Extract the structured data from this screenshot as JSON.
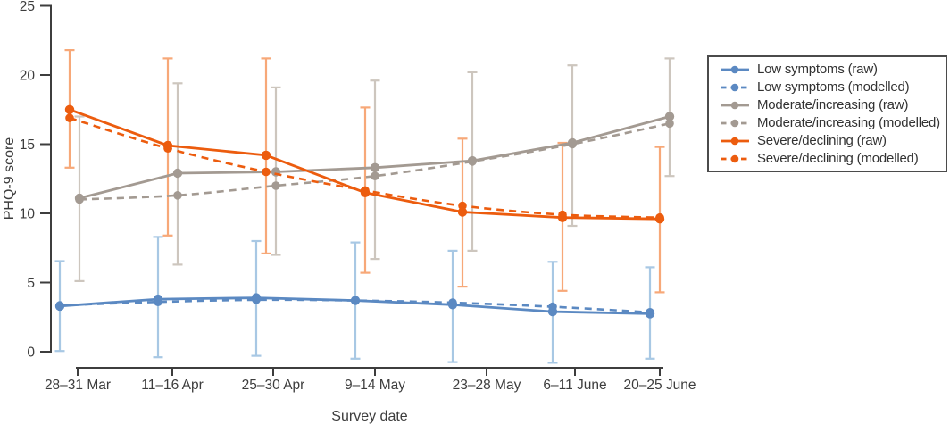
{
  "chart_data": {
    "type": "line",
    "title": "",
    "xlabel": "Survey date",
    "ylabel": "PHQ-9 score",
    "ylim": [
      0,
      25
    ],
    "yticks": [
      0,
      5,
      10,
      15,
      20,
      25
    ],
    "grid": false,
    "legend_position": "right",
    "axis_color": "#3d3d3d",
    "legend_border_color": "#4b4b4b",
    "categories": [
      "28–31 Mar",
      "11–16 Apr",
      "25–30 Apr",
      "9–14 May",
      "23–28 May",
      "6–11 June",
      "20–25 June"
    ],
    "series": [
      {
        "id": "low-raw",
        "label": "Low symptoms (raw)",
        "group": "low",
        "style": "solid",
        "color": "#5b89c2",
        "values": [
          3.3,
          3.8,
          3.9,
          3.7,
          3.4,
          2.9,
          2.75
        ]
      },
      {
        "id": "low-modelled",
        "label": "Low symptoms (modelled)",
        "group": "low",
        "style": "dashed",
        "color": "#5b89c2",
        "values": [
          3.35,
          3.6,
          3.75,
          3.7,
          3.55,
          3.25,
          2.85
        ]
      },
      {
        "id": "moderate-raw",
        "label": "Moderate/increasing (raw)",
        "group": "moderate",
        "style": "solid",
        "color": "#a39a92",
        "values": [
          11.1,
          12.9,
          13.0,
          13.3,
          13.8,
          15.1,
          17.0
        ]
      },
      {
        "id": "moderate-modelled",
        "label": "Moderate/increasing (modelled)",
        "group": "moderate",
        "style": "dashed",
        "color": "#a39a92",
        "values": [
          11.0,
          11.3,
          12.0,
          12.7,
          13.75,
          15.0,
          16.5
        ]
      },
      {
        "id": "severe-raw",
        "label": "Severe/declining (raw)",
        "group": "severe",
        "style": "solid",
        "color": "#ec5c0e",
        "values": [
          17.5,
          14.9,
          14.2,
          11.5,
          10.1,
          9.7,
          9.6
        ]
      },
      {
        "id": "severe-modelled",
        "label": "Severe/declining (modelled)",
        "group": "severe",
        "style": "dashed",
        "color": "#ec5c0e",
        "values": [
          16.9,
          14.7,
          13.0,
          11.65,
          10.55,
          9.9,
          9.7
        ]
      }
    ],
    "error_bars": [
      {
        "group": "moderate",
        "color": "#cdc6be",
        "low": [
          5.1,
          6.3,
          7.0,
          6.7,
          7.3,
          9.1,
          12.7
        ],
        "high": [
          17.0,
          19.4,
          19.1,
          19.6,
          20.2,
          20.7,
          21.2
        ]
      },
      {
        "group": "severe",
        "color": "#f7a878",
        "low": [
          13.3,
          8.4,
          7.1,
          5.7,
          4.7,
          4.4,
          4.3
        ],
        "high": [
          21.8,
          21.2,
          21.2,
          17.65,
          15.4,
          15.1,
          14.8
        ]
      },
      {
        "group": "low",
        "color": "#a8c8e4",
        "low": [
          0.05,
          -0.4,
          -0.3,
          -0.5,
          -0.75,
          -0.8,
          -0.5
        ],
        "high": [
          6.55,
          8.3,
          8.0,
          7.9,
          7.3,
          6.5,
          6.1
        ]
      }
    ]
  }
}
